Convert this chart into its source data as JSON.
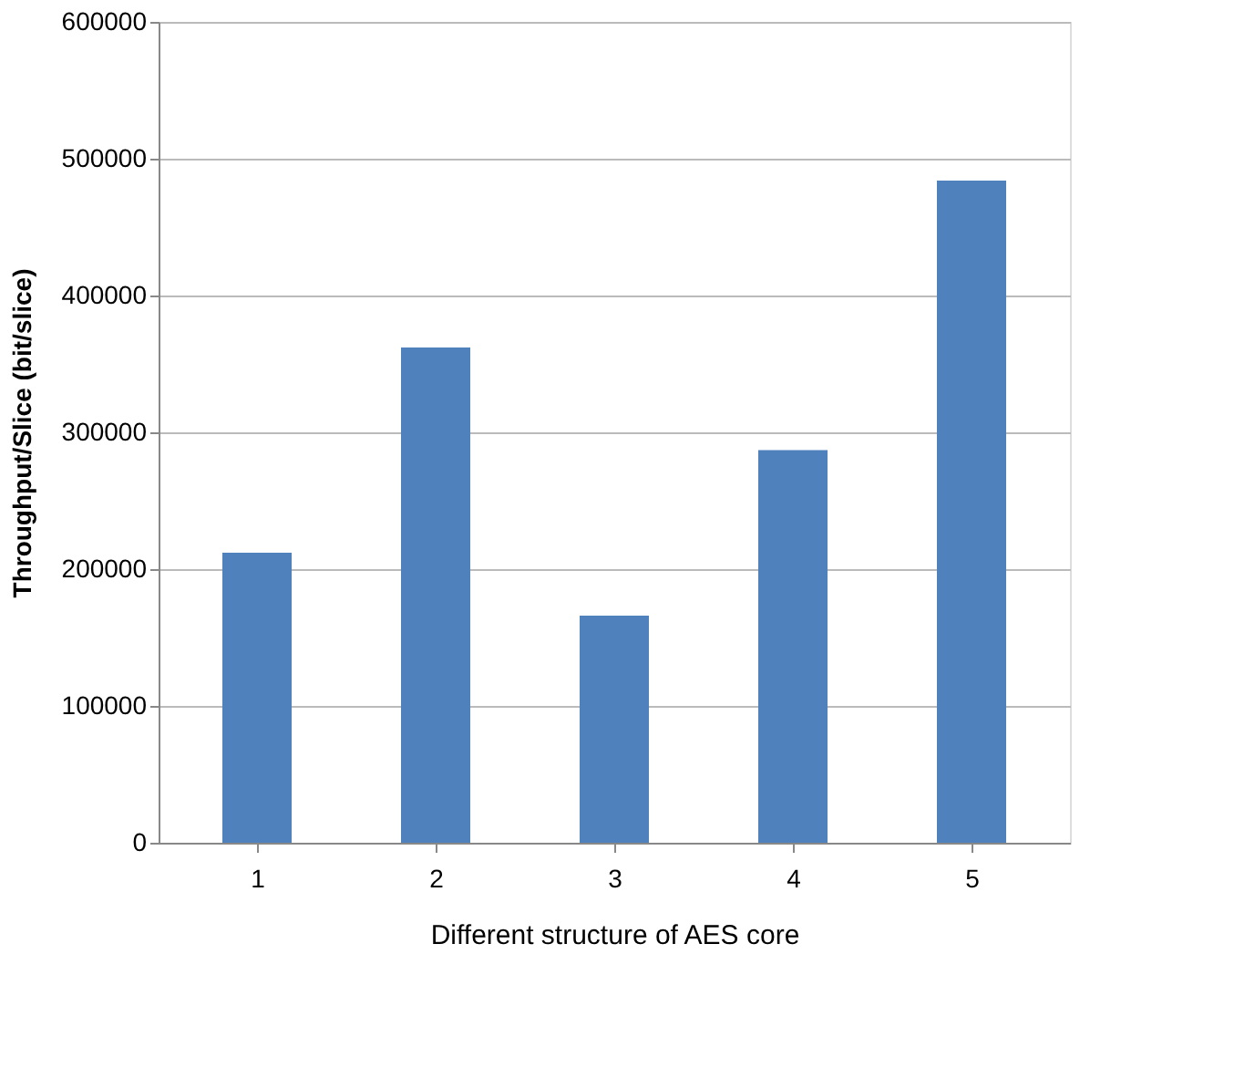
{
  "chart_data": {
    "type": "bar",
    "xlabel": "Different structure of AES core",
    "ylabel": "Throughput/Slice (bit/slice)",
    "categories": [
      "1",
      "2",
      "3",
      "4",
      "5"
    ],
    "values": [
      212000,
      362000,
      166000,
      287000,
      484000
    ],
    "color": "#4f81bd",
    "ylim": [
      0,
      600000
    ],
    "yticks": [
      0,
      100000,
      200000,
      300000,
      400000,
      500000,
      600000
    ],
    "grid": "y"
  }
}
